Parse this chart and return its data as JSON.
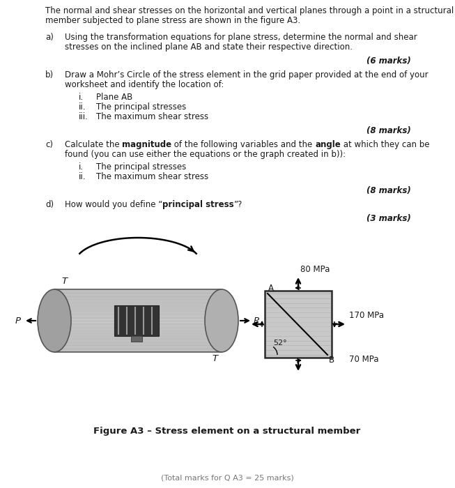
{
  "bg_color": "#ffffff",
  "text_color": "#1a1a1a",
  "fs": 8.5,
  "title_line1": "The normal and shear stresses on the horizontal and vertical planes through a point in a structural",
  "title_line2": "member subjected to plane stress are shown in the figure A3.",
  "qa_label": "a)",
  "qa_line1": "Using the transformation equations for plane stress, determine the normal and shear",
  "qa_line2": "stresses on the inclined plane AB and state their respective direction.",
  "qa_marks": "(6 marks)",
  "qb_label": "b)",
  "qb_line1": "Draw a Mohr’s Circle of the stress element in the grid paper provided at the end of your",
  "qb_line2": "worksheet and identify the location of:",
  "qb_i": "Plane AB",
  "qb_ii": "The principal stresses",
  "qb_iii": "The maximum shear stress",
  "qb_marks": "(8 marks)",
  "qc_label": "c)",
  "qc_pre": "Calculate the ",
  "qc_bold1": "magnitude",
  "qc_mid": " of the following variables and the ",
  "qc_bold2": "angle",
  "qc_post": " at which they can be",
  "qc_line2": "found (you can use either the equations or the graph created in b)):",
  "qc_i": "The principal stresses",
  "qc_ii": "The maximum shear stress",
  "qc_marks": "(8 marks)",
  "qd_label": "d)",
  "qd_pre": "How would you define “",
  "qd_bold": "principal stress",
  "qd_post": "”?",
  "qd_marks": "(3 marks)",
  "fig_caption": "Figure A3 – Stress element on a structural member",
  "footer": "(Total marks for Q A3 = 25 marks)",
  "stress_80": "80 MPa",
  "stress_170": "170 MPa",
  "stress_70": "70 MPa",
  "angle_text": "52°",
  "lbl_A": "A",
  "lbl_B": "B",
  "lbl_P": "P",
  "lbl_T": "T"
}
